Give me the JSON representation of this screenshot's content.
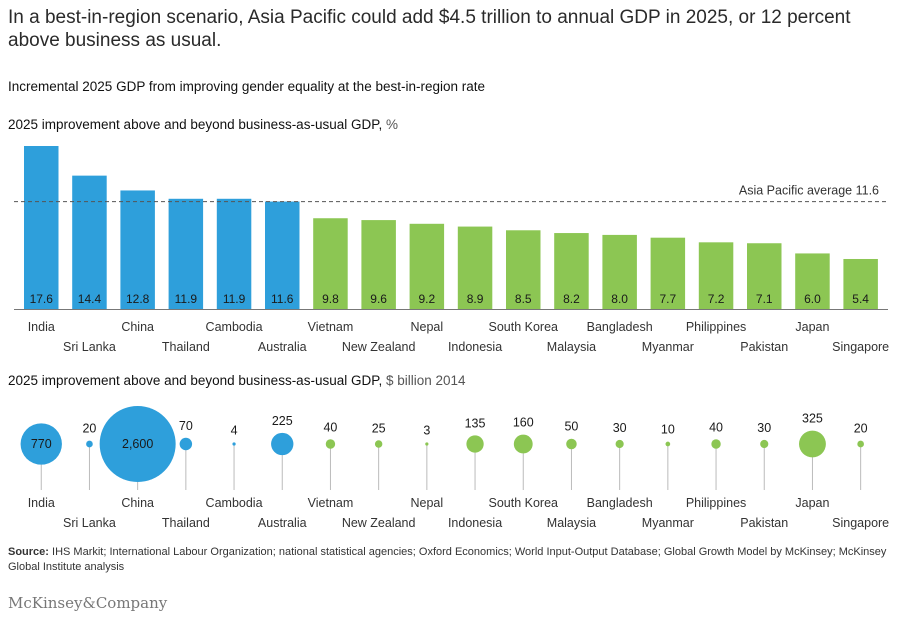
{
  "headline": "In a best-in-region scenario, Asia Pacific could add $4.5 trillion to annual GDP in 2025, or 12 percent above business as usual.",
  "subtitle": "Incremental 2025 GDP from improving gender equality at the best-in-region rate",
  "colors": {
    "blue": "#2e9fdb",
    "green": "#8cc653",
    "avg_line": "#555555",
    "stem": "#bbbbbb"
  },
  "chart_data": [
    {
      "type": "bar",
      "title": "2025 improvement above and beyond business-as-usual GDP,",
      "unit": "%",
      "categories": [
        "India",
        "Sri Lanka",
        "China",
        "Thailand",
        "Cambodia",
        "Australia",
        "Vietnam",
        "New Zealand",
        "Nepal",
        "Indonesia",
        "South Korea",
        "Malaysia",
        "Bangladesh",
        "Myanmar",
        "Philippines",
        "Pakistan",
        "Japan",
        "Singapore"
      ],
      "values": [
        17.6,
        14.4,
        12.8,
        11.9,
        11.9,
        11.6,
        9.8,
        9.6,
        9.2,
        8.9,
        8.5,
        8.2,
        8.0,
        7.7,
        7.2,
        7.1,
        6.0,
        5.4
      ],
      "value_labels": [
        "17.6",
        "14.4",
        "12.8",
        "11.9",
        "11.9",
        "11.6",
        "9.8",
        "9.6",
        "9.2",
        "8.9",
        "8.5",
        "8.2",
        "8.0",
        "7.7",
        "7.2",
        "7.1",
        "6.0",
        "5.4"
      ],
      "groups": [
        "blue",
        "blue",
        "blue",
        "blue",
        "blue",
        "blue",
        "green",
        "green",
        "green",
        "green",
        "green",
        "green",
        "green",
        "green",
        "green",
        "green",
        "green",
        "green"
      ],
      "reference_line": {
        "value": 11.6,
        "label": "Asia Pacific average 11.6"
      },
      "ylim": [
        0,
        18
      ]
    },
    {
      "type": "scatter",
      "title": "2025 improvement above and beyond business-as-usual GDP,",
      "unit": "$ billion 2014",
      "categories": [
        "India",
        "Sri Lanka",
        "China",
        "Thailand",
        "Cambodia",
        "Australia",
        "Vietnam",
        "New Zealand",
        "Nepal",
        "Indonesia",
        "South Korea",
        "Malaysia",
        "Bangladesh",
        "Myanmar",
        "Philippines",
        "Pakistan",
        "Japan",
        "Singapore"
      ],
      "values": [
        770,
        20,
        2600,
        70,
        4,
        225,
        40,
        25,
        3,
        135,
        160,
        50,
        30,
        10,
        40,
        30,
        325,
        20
      ],
      "value_labels": [
        "770",
        "20",
        "2,600",
        "70",
        "4",
        "225",
        "40",
        "25",
        "3",
        "135",
        "160",
        "50",
        "30",
        "10",
        "40",
        "30",
        "325",
        "20"
      ],
      "groups": [
        "blue",
        "blue",
        "blue",
        "blue",
        "blue",
        "blue",
        "green",
        "green",
        "green",
        "green",
        "green",
        "green",
        "green",
        "green",
        "green",
        "green",
        "green",
        "green"
      ]
    }
  ],
  "source": {
    "label": "Source:",
    "text": "IHS Markit; International Labour Organization; national statistical agencies; Oxford Economics; World Input-Output Database; Global Growth Model by McKinsey; McKinsey Global Institute analysis"
  },
  "logo": "McKinsey&Company"
}
